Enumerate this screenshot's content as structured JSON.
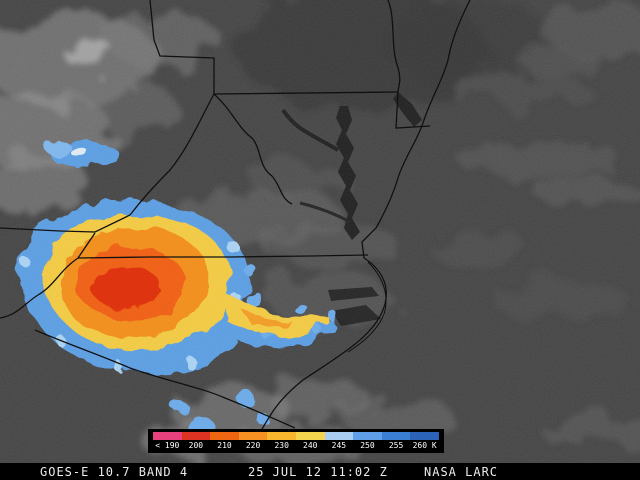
{
  "status_bar": {
    "instrument": "GOES-E 10.7 BAND 4",
    "timestamp": "25 JUL 12 11:02 Z",
    "source": "NASA LARC"
  },
  "legend": {
    "units": "K",
    "entries": [
      {
        "label": "< 190",
        "color": "#e6417d"
      },
      {
        "label": "200",
        "color": "#dd3322"
      },
      {
        "label": "210",
        "color": "#ee6611"
      },
      {
        "label": "220",
        "color": "#f59022"
      },
      {
        "label": "230",
        "color": "#f7b62e"
      },
      {
        "label": "240",
        "color": "#f3d44f"
      },
      {
        "label": "245",
        "color": "#a8cdf0"
      },
      {
        "label": "250",
        "color": "#5f9fe8"
      },
      {
        "label": "255",
        "color": "#3a7fd4"
      },
      {
        "label": "260 K",
        "color": "#2a63b8"
      }
    ]
  },
  "colors": {
    "background_land": "#454545",
    "status_bar_bg": "#000000",
    "status_bar_text": "#ececec",
    "storm_core_red": "#dd2d0e",
    "storm_orange": "#ee5d12",
    "storm_yellow": "#f0c843",
    "storm_blue_fringe": "#5a9ce0",
    "border_line": "#0d0d0d"
  }
}
